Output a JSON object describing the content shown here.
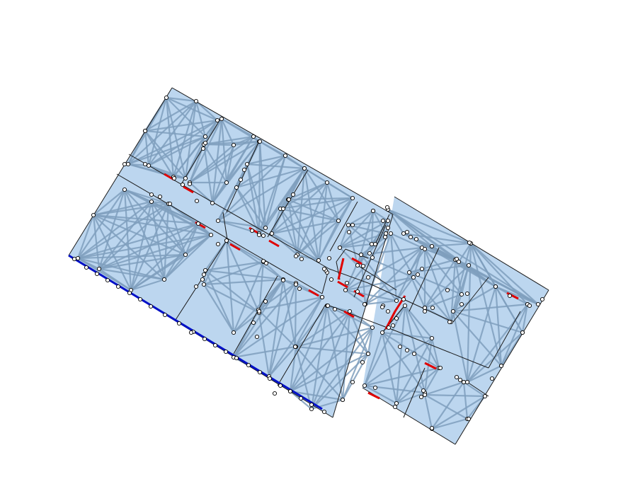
{
  "diagram": {
    "kind": "floor-plan-navigation-graph",
    "colors": {
      "background": "#ffffff",
      "room_fill": "#bcd6ef",
      "edge_stroke": "#7f9fbd",
      "wall_stroke": "#1a1a1a",
      "door_marker": "#e00000",
      "boundary_marker": "#0010c8",
      "node_fill": "#ffffff",
      "node_stroke": "#000000"
    },
    "legend": null
  }
}
